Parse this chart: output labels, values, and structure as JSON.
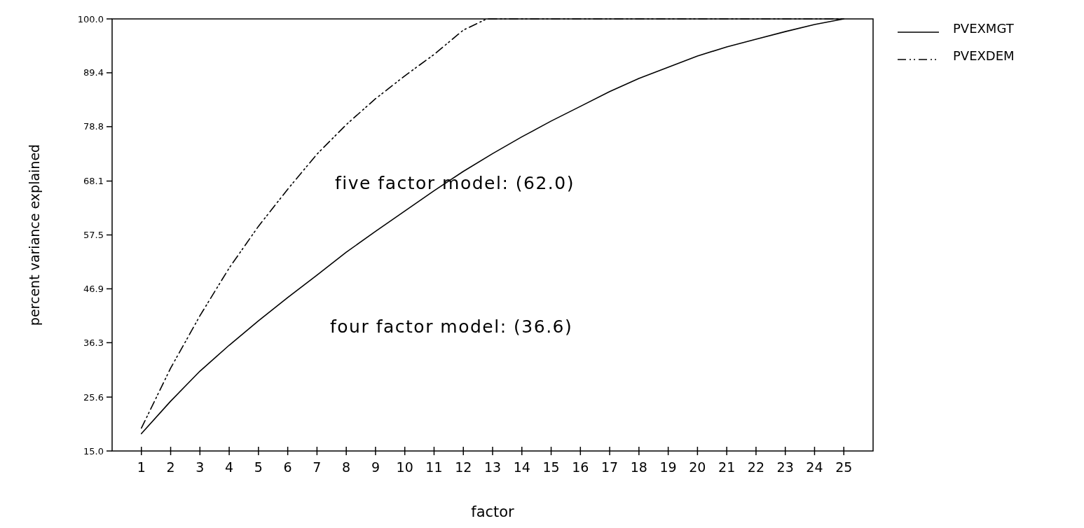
{
  "chart_data": {
    "type": "line",
    "xlabel": "factor",
    "ylabel": "percent variance explained",
    "xlim": [
      0,
      26
    ],
    "xticks": [
      1,
      2,
      3,
      4,
      5,
      6,
      7,
      8,
      9,
      10,
      11,
      12,
      13,
      14,
      15,
      16,
      17,
      18,
      19,
      20,
      21,
      22,
      23,
      24,
      25
    ],
    "ylim": [
      15,
      100
    ],
    "yticks": [
      {
        "value": 15,
        "label": "15.0"
      },
      25.6,
      36.3,
      46.9,
      57.5,
      68.1,
      78.8,
      89.4,
      {
        "value": 100,
        "label": "100.0"
      }
    ],
    "series": [
      {
        "name": "PVEXMGT",
        "color": "#000000",
        "line_style": "solid",
        "x": [
          1,
          2,
          3,
          4,
          5,
          6,
          7,
          8,
          9,
          10,
          11,
          12,
          13,
          14,
          15,
          16,
          17,
          18,
          19,
          20,
          21,
          22,
          23,
          24,
          25
        ],
        "values": [
          18.4,
          24.8,
          30.7,
          35.8,
          40.6,
          45.2,
          49.6,
          54.1,
          58.2,
          62.2,
          66.2,
          70.0,
          73.5,
          76.8,
          79.9,
          82.8,
          85.7,
          88.3,
          90.5,
          92.7,
          94.5,
          96.0,
          97.5,
          98.9,
          100
        ]
      },
      {
        "name": "PVEXDEM",
        "color": "#000000",
        "line_style": "dashed",
        "x": [
          1,
          2,
          3,
          4,
          5,
          6,
          7,
          8,
          9,
          10,
          11,
          12,
          12.8,
          25
        ],
        "values": [
          19.5,
          31.3,
          41.6,
          51.0,
          59.2,
          66.5,
          73.4,
          79.2,
          84.3,
          88.8,
          93.0,
          97.8,
          100,
          100
        ]
      }
    ],
    "annotations": [
      "five factor model: (62.0)",
      "four factor model: (36.6)"
    ],
    "legend": "right",
    "grid": false,
    "marker": "none"
  }
}
